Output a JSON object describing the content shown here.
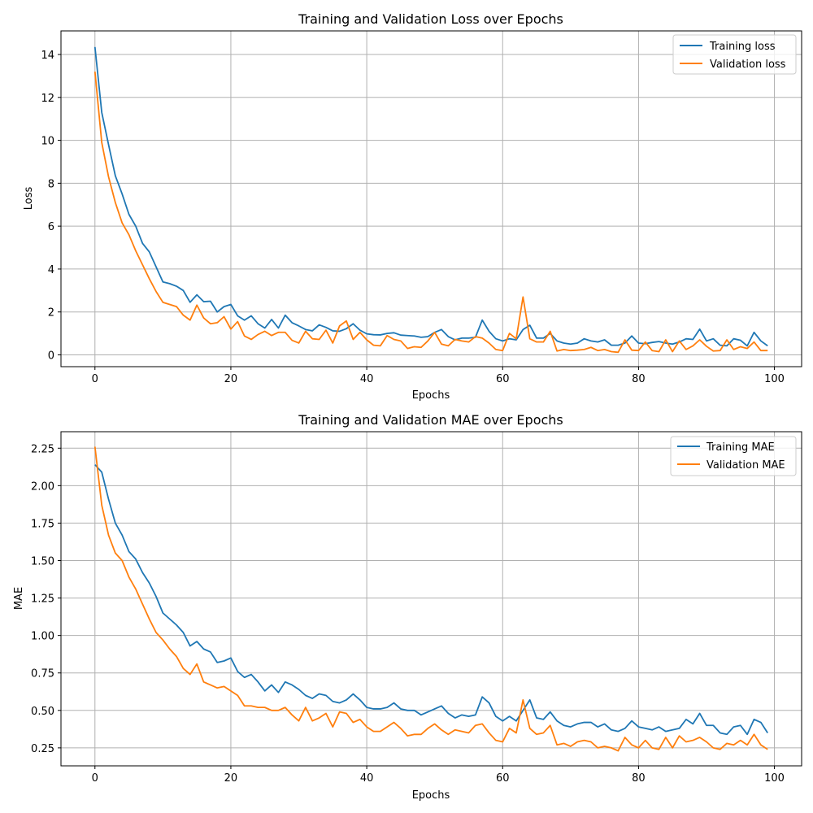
{
  "chart_data": [
    {
      "type": "line",
      "title": "Training and Validation Loss over Epochs",
      "xlabel": "Epochs",
      "ylabel": "Loss",
      "xlim": [
        -5,
        104
      ],
      "ylim": [
        -0.55,
        15.1
      ],
      "xticks": [
        0,
        20,
        40,
        60,
        80,
        100
      ],
      "yticks": [
        0,
        2,
        4,
        6,
        8,
        10,
        12,
        14
      ],
      "ytick_labels": [
        "0",
        "2",
        "4",
        "6",
        "8",
        "10",
        "12",
        "14"
      ],
      "grid": true,
      "legend_position": "top-right",
      "series": [
        {
          "name": "Training loss",
          "color": "#1f77b4",
          "values": [
            14.35,
            11.3,
            9.8,
            8.35,
            7.5,
            6.55,
            6.0,
            5.2,
            4.8,
            4.1,
            3.4,
            3.32,
            3.2,
            3.0,
            2.45,
            2.8,
            2.48,
            2.5,
            2.0,
            2.25,
            2.35,
            1.82,
            1.62,
            1.82,
            1.45,
            1.25,
            1.65,
            1.25,
            1.85,
            1.5,
            1.35,
            1.18,
            1.12,
            1.4,
            1.28,
            1.12,
            1.1,
            1.22,
            1.45,
            1.15,
            0.98,
            0.94,
            0.93,
            1.0,
            1.03,
            0.92,
            0.9,
            0.88,
            0.82,
            0.85,
            1.05,
            1.18,
            0.85,
            0.7,
            0.78,
            0.78,
            0.82,
            1.62,
            1.1,
            0.75,
            0.65,
            0.75,
            0.7,
            1.18,
            1.38,
            0.78,
            0.78,
            1.0,
            0.65,
            0.55,
            0.5,
            0.55,
            0.75,
            0.65,
            0.6,
            0.7,
            0.45,
            0.45,
            0.55,
            0.88,
            0.55,
            0.52,
            0.58,
            0.62,
            0.55,
            0.5,
            0.6,
            0.75,
            0.72,
            1.2,
            0.65,
            0.75,
            0.45,
            0.42,
            0.75,
            0.68,
            0.42,
            1.05,
            0.65,
            0.42
          ]
        },
        {
          "name": "Validation loss",
          "color": "#ff7f0e",
          "values": [
            13.2,
            9.9,
            8.3,
            7.1,
            6.15,
            5.6,
            4.85,
            4.2,
            3.55,
            2.95,
            2.45,
            2.35,
            2.25,
            1.85,
            1.62,
            2.32,
            1.72,
            1.45,
            1.5,
            1.78,
            1.2,
            1.55,
            0.88,
            0.72,
            0.95,
            1.1,
            0.9,
            1.05,
            1.05,
            0.68,
            0.55,
            1.1,
            0.75,
            0.72,
            1.15,
            0.55,
            1.35,
            1.58,
            0.72,
            1.05,
            0.7,
            0.45,
            0.42,
            0.9,
            0.72,
            0.65,
            0.3,
            0.38,
            0.35,
            0.65,
            1.05,
            0.5,
            0.42,
            0.72,
            0.65,
            0.6,
            0.85,
            0.78,
            0.55,
            0.25,
            0.2,
            1.0,
            0.75,
            2.7,
            0.75,
            0.6,
            0.6,
            1.1,
            0.18,
            0.25,
            0.2,
            0.22,
            0.25,
            0.35,
            0.2,
            0.25,
            0.15,
            0.12,
            0.7,
            0.22,
            0.2,
            0.6,
            0.2,
            0.15,
            0.7,
            0.15,
            0.65,
            0.25,
            0.42,
            0.7,
            0.4,
            0.18,
            0.2,
            0.7,
            0.25,
            0.38,
            0.3,
            0.6,
            0.2,
            0.2
          ]
        }
      ]
    },
    {
      "type": "line",
      "title": "Training and Validation MAE over Epochs",
      "xlabel": "Epochs",
      "ylabel": "MAE",
      "xlim": [
        -5,
        104
      ],
      "ylim": [
        0.13,
        2.36
      ],
      "xticks": [
        0,
        20,
        40,
        60,
        80,
        100
      ],
      "yticks": [
        0.25,
        0.5,
        0.75,
        1.0,
        1.25,
        1.5,
        1.75,
        2.0,
        2.25
      ],
      "ytick_labels": [
        "0.25",
        "0.50",
        "0.75",
        "1.00",
        "1.25",
        "1.50",
        "1.75",
        "2.00",
        "2.25"
      ],
      "grid": true,
      "legend_position": "top-right",
      "series": [
        {
          "name": "Training MAE",
          "color": "#1f77b4",
          "values": [
            2.14,
            2.09,
            1.91,
            1.75,
            1.67,
            1.56,
            1.51,
            1.42,
            1.35,
            1.26,
            1.15,
            1.11,
            1.07,
            1.02,
            0.93,
            0.96,
            0.91,
            0.89,
            0.82,
            0.83,
            0.85,
            0.76,
            0.72,
            0.74,
            0.69,
            0.63,
            0.67,
            0.62,
            0.69,
            0.67,
            0.64,
            0.6,
            0.58,
            0.61,
            0.6,
            0.56,
            0.55,
            0.57,
            0.61,
            0.57,
            0.52,
            0.51,
            0.51,
            0.52,
            0.55,
            0.51,
            0.5,
            0.5,
            0.47,
            0.49,
            0.51,
            0.53,
            0.48,
            0.45,
            0.47,
            0.46,
            0.47,
            0.59,
            0.55,
            0.46,
            0.43,
            0.46,
            0.43,
            0.5,
            0.57,
            0.45,
            0.44,
            0.49,
            0.43,
            0.4,
            0.39,
            0.41,
            0.42,
            0.42,
            0.39,
            0.41,
            0.37,
            0.36,
            0.38,
            0.43,
            0.39,
            0.38,
            0.37,
            0.39,
            0.36,
            0.37,
            0.38,
            0.44,
            0.41,
            0.48,
            0.4,
            0.4,
            0.35,
            0.34,
            0.39,
            0.4,
            0.34,
            0.44,
            0.42,
            0.35
          ]
        },
        {
          "name": "Validation MAE",
          "color": "#ff7f0e",
          "values": [
            2.26,
            1.87,
            1.67,
            1.55,
            1.5,
            1.39,
            1.31,
            1.21,
            1.11,
            1.02,
            0.97,
            0.91,
            0.86,
            0.78,
            0.74,
            0.81,
            0.69,
            0.67,
            0.65,
            0.66,
            0.63,
            0.6,
            0.53,
            0.53,
            0.52,
            0.52,
            0.5,
            0.5,
            0.52,
            0.47,
            0.43,
            0.52,
            0.43,
            0.45,
            0.48,
            0.39,
            0.49,
            0.48,
            0.42,
            0.44,
            0.39,
            0.36,
            0.36,
            0.39,
            0.42,
            0.38,
            0.33,
            0.34,
            0.34,
            0.38,
            0.41,
            0.37,
            0.34,
            0.37,
            0.36,
            0.35,
            0.4,
            0.41,
            0.35,
            0.3,
            0.29,
            0.38,
            0.35,
            0.57,
            0.38,
            0.34,
            0.35,
            0.4,
            0.27,
            0.28,
            0.26,
            0.29,
            0.3,
            0.29,
            0.25,
            0.26,
            0.25,
            0.23,
            0.32,
            0.27,
            0.25,
            0.3,
            0.25,
            0.24,
            0.32,
            0.25,
            0.33,
            0.29,
            0.3,
            0.32,
            0.29,
            0.25,
            0.24,
            0.28,
            0.27,
            0.3,
            0.27,
            0.34,
            0.27,
            0.24
          ]
        }
      ]
    }
  ]
}
